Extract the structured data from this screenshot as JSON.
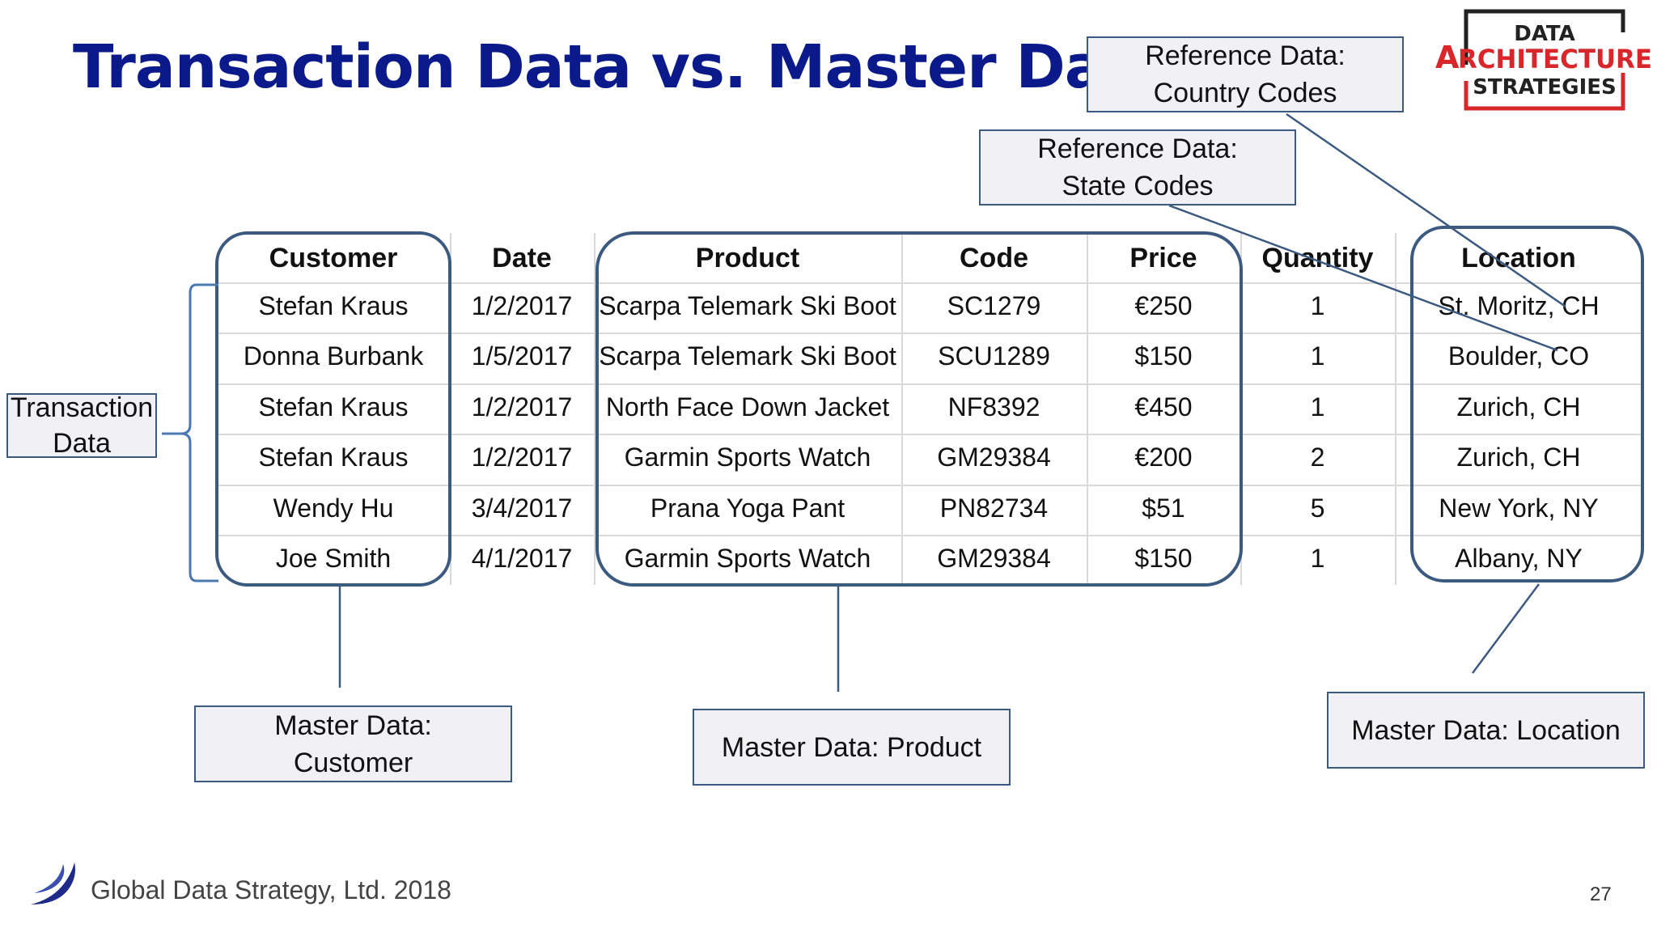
{
  "title": "Transaction Data vs. Master Data",
  "logo": {
    "line1": "DATA",
    "line2": "RCHITECTURE",
    "line2_initial": "A",
    "line3": "STRATEGIES"
  },
  "callouts": {
    "ref_country": [
      "Reference Data:",
      "Country Codes"
    ],
    "ref_state": [
      "Reference Data:",
      "State Codes"
    ],
    "transaction": [
      "Transaction",
      "Data"
    ],
    "master_customer": [
      "Master Data:",
      "Customer"
    ],
    "master_product": "Master Data:  Product",
    "master_location": "Master Data:  Location"
  },
  "table": {
    "headers": [
      "Customer",
      "Date",
      "Product",
      "Code",
      "Price",
      "Quantity",
      "Location"
    ],
    "rows": [
      [
        "Stefan Kraus",
        "1/2/2017",
        "Scarpa Telemark Ski Boot",
        "SC1279",
        "€250",
        "1",
        "St. Moritz, CH"
      ],
      [
        "Donna Burbank",
        "1/5/2017",
        "Scarpa Telemark Ski Boot",
        "SCU1289",
        "$150",
        "1",
        "Boulder, CO"
      ],
      [
        "Stefan Kraus",
        "1/2/2017",
        "North Face Down Jacket",
        "NF8392",
        "€450",
        "1",
        "Zurich, CH"
      ],
      [
        "Stefan Kraus",
        "1/2/2017",
        "Garmin Sports Watch",
        "GM29384",
        "€200",
        "2",
        "Zurich, CH"
      ],
      [
        "Wendy Hu",
        "3/4/2017",
        "Prana Yoga Pant",
        "PN82734",
        "$51",
        "5",
        "New York, NY"
      ],
      [
        "Joe Smith",
        "4/1/2017",
        "Garmin Sports Watch",
        "GM29384",
        "$150",
        "1",
        "Albany, NY"
      ]
    ]
  },
  "footer": {
    "text": "Global Data Strategy, Ltd. 2018",
    "page": "27"
  },
  "colors": {
    "title": "#0b1a8a",
    "frame": "#3c5a80",
    "logo_red": "#d9262b"
  }
}
